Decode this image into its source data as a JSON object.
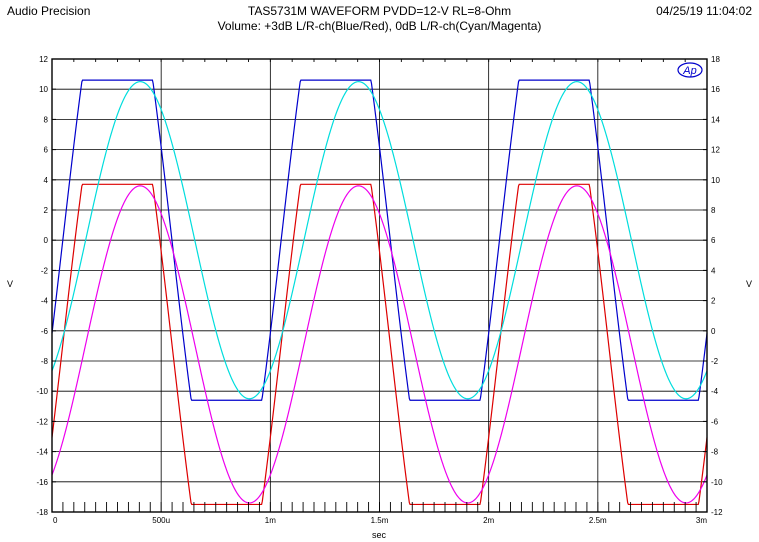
{
  "header": {
    "left": "Audio Precision",
    "title_line1": "TAS5731M WAVEFORM PVDD=12-V RL=8-Ohm",
    "title_line2": "Volume: +3dB L/R-ch(Blue/Red), 0dB L/R-ch(Cyan/Magenta)",
    "right": "04/25/19 11:04:02"
  },
  "chart_data": {
    "type": "line",
    "title": "TAS5731M WAVEFORM PVDD=12-V RL=8-Ohm",
    "subtitle": "Volume: +3dB L/R-ch(Blue/Red), 0dB L/R-ch(Cyan/Magenta)",
    "xlabel": "sec",
    "ylabel_left": "V",
    "ylabel_right": "V",
    "xlim": [
      0,
      0.003
    ],
    "ylim_left": [
      -18,
      12
    ],
    "ylim_right": [
      -12,
      18
    ],
    "x_ticks": [
      0,
      0.0005,
      0.001,
      0.0015,
      0.002,
      0.0025,
      0.003
    ],
    "x_tick_labels": [
      "0",
      "500u",
      "1m",
      "1.5m",
      "2m",
      "2.5m",
      "3m"
    ],
    "y_left_ticks": [
      12,
      10,
      8,
      6,
      4,
      2,
      0,
      -2,
      -4,
      -6,
      -8,
      -10,
      -12,
      -14,
      -16,
      -18
    ],
    "y_right_ticks": [
      18,
      16,
      14,
      12,
      10,
      8,
      6,
      4,
      2,
      0,
      -2,
      -4,
      -6,
      -8,
      -10,
      -12
    ],
    "grid": true,
    "logo": "Ap",
    "series": [
      {
        "color": "#0000cc",
        "axis": "left",
        "shape": "clipped-sine",
        "period": 0.001,
        "offset": 0,
        "amplitude": 10.6,
        "high": 10.6,
        "low": -10.6,
        "phase_x": 4.95e-05,
        "clip": 10.6
      },
      {
        "color": "#dd0000",
        "axis": "right",
        "shape": "clipped-sine",
        "period": 0.001,
        "offset": -0.9,
        "amplitude": 10.6,
        "high": 10.6,
        "low": -10.6,
        "phase_x": 4.95e-05,
        "clip": 10.6
      },
      {
        "color": "#00dddd",
        "axis": "left",
        "shape": "sine",
        "period": 0.001,
        "offset": 0,
        "amplitude": 10.5,
        "high": 10.5,
        "low": -10.5,
        "phase_x": 0.000154
      },
      {
        "color": "#ee00ee",
        "axis": "right",
        "shape": "sine",
        "period": 0.001,
        "offset": -0.9,
        "amplitude": 10.5,
        "high": 10.5,
        "low": -10.5,
        "phase_x": 0.000154
      }
    ]
  }
}
